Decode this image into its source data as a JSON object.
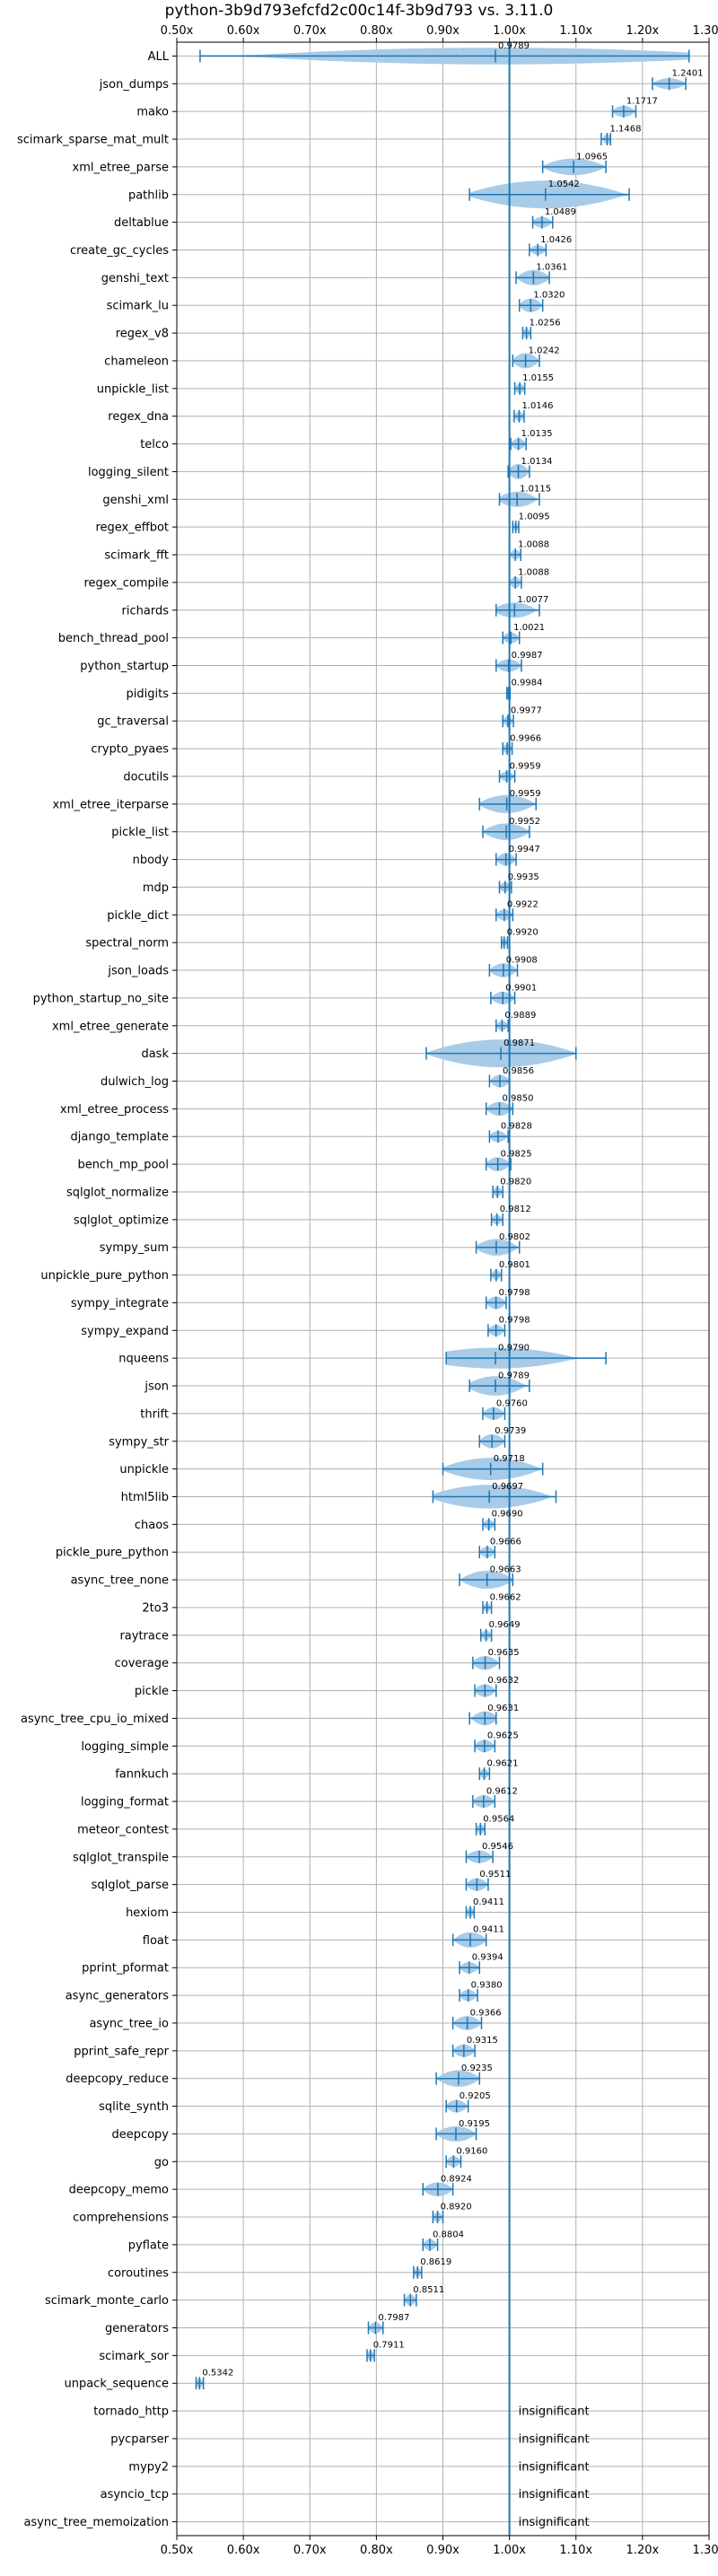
{
  "chart_data": {
    "type": "violin",
    "title": "python-3b9d793efcfd2c00c14f-3b9d793 vs. 3.11.0",
    "xlim": [
      0.5,
      1.3
    ],
    "xticks": [
      0.5,
      0.6,
      0.7,
      0.8,
      0.9,
      1.0,
      1.1,
      1.2,
      1.3
    ],
    "xtick_labels": [
      "0.50x",
      "0.60x",
      "0.70x",
      "0.80x",
      "0.90x",
      "1.00x",
      "1.10x",
      "1.20x",
      "1.30x"
    ],
    "xaxis_position": "top and bottom",
    "reference_line": 1.0,
    "grid": true,
    "colors": {
      "violin": "#a8cbe8",
      "line": "#1f77b4",
      "grid": "#b0b0b0",
      "reference": "#1f77b4"
    },
    "benchmarks": [
      {
        "name": "ALL",
        "value": 0.9789,
        "label": "0.9789",
        "min": 0.535,
        "max": 1.27,
        "q1": 0.92,
        "q3": 1.025,
        "width": 0.55
      },
      {
        "name": "json_dumps",
        "value": 1.2401,
        "label": "1.2401",
        "min": 1.215,
        "max": 1.265,
        "width": 0.35
      },
      {
        "name": "mako",
        "value": 1.1717,
        "label": "1.1717",
        "min": 1.155,
        "max": 1.19,
        "width": 0.35
      },
      {
        "name": "scimark_sparse_mat_mult",
        "value": 1.1468,
        "label": "1.1468",
        "min": 1.138,
        "max": 1.152,
        "width": 0.3
      },
      {
        "name": "xml_etree_parse",
        "value": 1.0965,
        "label": "1.0965",
        "min": 1.05,
        "max": 1.145,
        "width": 0.55
      },
      {
        "name": "pathlib",
        "value": 1.0542,
        "label": "1.0542",
        "min": 0.94,
        "max": 1.18,
        "width": 0.95
      },
      {
        "name": "deltablue",
        "value": 1.0489,
        "label": "1.0489",
        "min": 1.035,
        "max": 1.065,
        "width": 0.35
      },
      {
        "name": "create_gc_cycles",
        "value": 1.0426,
        "label": "1.0426",
        "min": 1.03,
        "max": 1.055,
        "width": 0.3
      },
      {
        "name": "genshi_text",
        "value": 1.0361,
        "label": "1.0361",
        "min": 1.01,
        "max": 1.06,
        "width": 0.5
      },
      {
        "name": "scimark_lu",
        "value": 1.032,
        "label": "1.0320",
        "min": 1.015,
        "max": 1.05,
        "width": 0.45
      },
      {
        "name": "regex_v8",
        "value": 1.0256,
        "label": "1.0256",
        "min": 1.02,
        "max": 1.032,
        "width": 0.3
      },
      {
        "name": "chameleon",
        "value": 1.0242,
        "label": "1.0242",
        "min": 1.005,
        "max": 1.045,
        "width": 0.5
      },
      {
        "name": "unpickle_list",
        "value": 1.0155,
        "label": "1.0155",
        "min": 1.008,
        "max": 1.023,
        "width": 0.3
      },
      {
        "name": "regex_dna",
        "value": 1.0146,
        "label": "1.0146",
        "min": 1.007,
        "max": 1.022,
        "width": 0.3
      },
      {
        "name": "telco",
        "value": 1.0135,
        "label": "1.0135",
        "min": 1.002,
        "max": 1.025,
        "width": 0.35
      },
      {
        "name": "logging_silent",
        "value": 1.0134,
        "label": "1.0134",
        "min": 0.998,
        "max": 1.03,
        "width": 0.5
      },
      {
        "name": "genshi_xml",
        "value": 1.0115,
        "label": "1.0115",
        "min": 0.985,
        "max": 1.045,
        "width": 0.5
      },
      {
        "name": "regex_effbot",
        "value": 1.0095,
        "label": "1.0095",
        "min": 1.005,
        "max": 1.014,
        "width": 0.25
      },
      {
        "name": "scimark_fft",
        "value": 1.0088,
        "label": "1.0088",
        "min": 1.0,
        "max": 1.017,
        "width": 0.3
      },
      {
        "name": "regex_compile",
        "value": 1.0088,
        "label": "1.0088",
        "min": 1.0,
        "max": 1.018,
        "width": 0.35
      },
      {
        "name": "richards",
        "value": 1.0077,
        "label": "1.0077",
        "min": 0.98,
        "max": 1.045,
        "width": 0.5
      },
      {
        "name": "bench_thread_pool",
        "value": 1.0021,
        "label": "1.0021",
        "min": 0.99,
        "max": 1.015,
        "width": 0.35
      },
      {
        "name": "python_startup",
        "value": 0.9987,
        "label": "0.9987",
        "min": 0.98,
        "max": 1.018,
        "width": 0.4
      },
      {
        "name": "pidigits",
        "value": 0.9984,
        "label": "0.9984",
        "min": 0.996,
        "max": 1.001,
        "width": 0.2
      },
      {
        "name": "gc_traversal",
        "value": 0.9977,
        "label": "0.9977",
        "min": 0.99,
        "max": 1.006,
        "width": 0.3
      },
      {
        "name": "crypto_pyaes",
        "value": 0.9966,
        "label": "0.9966",
        "min": 0.99,
        "max": 1.004,
        "width": 0.3
      },
      {
        "name": "docutils",
        "value": 0.9959,
        "label": "0.9959",
        "min": 0.985,
        "max": 1.008,
        "width": 0.3
      },
      {
        "name": "xml_etree_iterparse",
        "value": 0.9959,
        "label": "0.9959",
        "min": 0.955,
        "max": 1.04,
        "width": 0.6
      },
      {
        "name": "pickle_list",
        "value": 0.9952,
        "label": "0.9952",
        "min": 0.96,
        "max": 1.03,
        "width": 0.55
      },
      {
        "name": "nbody",
        "value": 0.9947,
        "label": "0.9947",
        "min": 0.98,
        "max": 1.01,
        "width": 0.4
      },
      {
        "name": "mdp",
        "value": 0.9935,
        "label": "0.9935",
        "min": 0.985,
        "max": 1.003,
        "width": 0.3
      },
      {
        "name": "pickle_dict",
        "value": 0.9922,
        "label": "0.9922",
        "min": 0.98,
        "max": 1.005,
        "width": 0.35
      },
      {
        "name": "spectral_norm",
        "value": 0.992,
        "label": "0.9920",
        "min": 0.988,
        "max": 0.997,
        "width": 0.25
      },
      {
        "name": "json_loads",
        "value": 0.9908,
        "label": "0.9908",
        "min": 0.97,
        "max": 1.012,
        "width": 0.45
      },
      {
        "name": "python_startup_no_site",
        "value": 0.9901,
        "label": "0.9901",
        "min": 0.972,
        "max": 1.008,
        "width": 0.4
      },
      {
        "name": "xml_etree_generate",
        "value": 0.9889,
        "label": "0.9889",
        "min": 0.98,
        "max": 0.998,
        "width": 0.3
      },
      {
        "name": "dask",
        "value": 0.9871,
        "label": "0.9871",
        "min": 0.875,
        "max": 1.1,
        "width": 0.95
      },
      {
        "name": "dulwich_log",
        "value": 0.9856,
        "label": "0.9856",
        "min": 0.97,
        "max": 1.0,
        "width": 0.4
      },
      {
        "name": "xml_etree_process",
        "value": 0.985,
        "label": "0.9850",
        "min": 0.965,
        "max": 1.005,
        "width": 0.45
      },
      {
        "name": "django_template",
        "value": 0.9828,
        "label": "0.9828",
        "min": 0.97,
        "max": 0.998,
        "width": 0.35
      },
      {
        "name": "bench_mp_pool",
        "value": 0.9825,
        "label": "0.9825",
        "min": 0.965,
        "max": 1.002,
        "width": 0.45
      },
      {
        "name": "sqlglot_normalize",
        "value": 0.982,
        "label": "0.9820",
        "min": 0.975,
        "max": 0.99,
        "width": 0.3
      },
      {
        "name": "sqlglot_optimize",
        "value": 0.9812,
        "label": "0.9812",
        "min": 0.973,
        "max": 0.99,
        "width": 0.3
      },
      {
        "name": "sympy_sum",
        "value": 0.9802,
        "label": "0.9802",
        "min": 0.95,
        "max": 1.015,
        "width": 0.55
      },
      {
        "name": "unpickle_pure_python",
        "value": 0.9801,
        "label": "0.9801",
        "min": 0.972,
        "max": 0.988,
        "width": 0.3
      },
      {
        "name": "sympy_integrate",
        "value": 0.9798,
        "label": "0.9798",
        "min": 0.965,
        "max": 0.995,
        "width": 0.4
      },
      {
        "name": "sympy_expand",
        "value": 0.9798,
        "label": "0.9798",
        "min": 0.968,
        "max": 0.993,
        "width": 0.35
      },
      {
        "name": "nqueens",
        "value": 0.979,
        "label": "0.9790",
        "min": 0.905,
        "max": 1.145,
        "width": 0.7
      },
      {
        "name": "json",
        "value": 0.9789,
        "label": "0.9789",
        "min": 0.94,
        "max": 1.03,
        "width": 0.65
      },
      {
        "name": "thrift",
        "value": 0.976,
        "label": "0.9760",
        "min": 0.96,
        "max": 0.993,
        "width": 0.4
      },
      {
        "name": "sympy_str",
        "value": 0.9739,
        "label": "0.9739",
        "min": 0.955,
        "max": 0.993,
        "width": 0.45
      },
      {
        "name": "unpickle",
        "value": 0.9718,
        "label": "0.9718",
        "min": 0.9,
        "max": 1.05,
        "width": 0.75
      },
      {
        "name": "html5lib",
        "value": 0.9697,
        "label": "0.9697",
        "min": 0.885,
        "max": 1.07,
        "width": 0.8
      },
      {
        "name": "chaos",
        "value": 0.969,
        "label": "0.9690",
        "min": 0.96,
        "max": 0.978,
        "width": 0.3
      },
      {
        "name": "pickle_pure_python",
        "value": 0.9666,
        "label": "0.9666",
        "min": 0.955,
        "max": 0.978,
        "width": 0.35
      },
      {
        "name": "async_tree_none",
        "value": 0.9663,
        "label": "0.9663",
        "min": 0.925,
        "max": 1.005,
        "width": 0.6
      },
      {
        "name": "2to3",
        "value": 0.9662,
        "label": "0.9662",
        "min": 0.96,
        "max": 0.973,
        "width": 0.25
      },
      {
        "name": "raytrace",
        "value": 0.9649,
        "label": "0.9649",
        "min": 0.957,
        "max": 0.973,
        "width": 0.3
      },
      {
        "name": "coverage",
        "value": 0.9635,
        "label": "0.9635",
        "min": 0.945,
        "max": 0.985,
        "width": 0.45
      },
      {
        "name": "pickle",
        "value": 0.9632,
        "label": "0.9632",
        "min": 0.948,
        "max": 0.98,
        "width": 0.4
      },
      {
        "name": "async_tree_cpu_io_mixed",
        "value": 0.9631,
        "label": "0.9631",
        "min": 0.94,
        "max": 0.98,
        "width": 0.45
      },
      {
        "name": "logging_simple",
        "value": 0.9625,
        "label": "0.9625",
        "min": 0.948,
        "max": 0.978,
        "width": 0.4
      },
      {
        "name": "fannkuch",
        "value": 0.9621,
        "label": "0.9621",
        "min": 0.955,
        "max": 0.97,
        "width": 0.3
      },
      {
        "name": "logging_format",
        "value": 0.9612,
        "label": "0.9612",
        "min": 0.945,
        "max": 0.978,
        "width": 0.4
      },
      {
        "name": "meteor_contest",
        "value": 0.9564,
        "label": "0.9564",
        "min": 0.95,
        "max": 0.963,
        "width": 0.3
      },
      {
        "name": "sqlglot_transpile",
        "value": 0.9546,
        "label": "0.9546",
        "min": 0.935,
        "max": 0.975,
        "width": 0.4
      },
      {
        "name": "sqlglot_parse",
        "value": 0.9511,
        "label": "0.9511",
        "min": 0.935,
        "max": 0.968,
        "width": 0.4
      },
      {
        "name": "hexiom",
        "value": 0.9411,
        "label": "0.9411",
        "min": 0.935,
        "max": 0.947,
        "width": 0.3
      },
      {
        "name": "float",
        "value": 0.9411,
        "label": "0.9411",
        "min": 0.915,
        "max": 0.965,
        "width": 0.5
      },
      {
        "name": "pprint_pformat",
        "value": 0.9394,
        "label": "0.9394",
        "min": 0.925,
        "max": 0.955,
        "width": 0.35
      },
      {
        "name": "async_generators",
        "value": 0.938,
        "label": "0.9380",
        "min": 0.925,
        "max": 0.952,
        "width": 0.35
      },
      {
        "name": "async_tree_io",
        "value": 0.9366,
        "label": "0.9366",
        "min": 0.915,
        "max": 0.958,
        "width": 0.45
      },
      {
        "name": "pprint_safe_repr",
        "value": 0.9315,
        "label": "0.9315",
        "min": 0.915,
        "max": 0.948,
        "width": 0.4
      },
      {
        "name": "deepcopy_reduce",
        "value": 0.9235,
        "label": "0.9235",
        "min": 0.89,
        "max": 0.955,
        "width": 0.55
      },
      {
        "name": "sqlite_synth",
        "value": 0.9205,
        "label": "0.9205",
        "min": 0.905,
        "max": 0.938,
        "width": 0.4
      },
      {
        "name": "deepcopy",
        "value": 0.9195,
        "label": "0.9195",
        "min": 0.89,
        "max": 0.95,
        "width": 0.5
      },
      {
        "name": "go",
        "value": 0.916,
        "label": "0.9160",
        "min": 0.905,
        "max": 0.927,
        "width": 0.35
      },
      {
        "name": "deepcopy_memo",
        "value": 0.8924,
        "label": "0.8924",
        "min": 0.87,
        "max": 0.915,
        "width": 0.45
      },
      {
        "name": "comprehensions",
        "value": 0.892,
        "label": "0.8920",
        "min": 0.885,
        "max": 0.9,
        "width": 0.3
      },
      {
        "name": "pyflate",
        "value": 0.8804,
        "label": "0.8804",
        "min": 0.87,
        "max": 0.892,
        "width": 0.35
      },
      {
        "name": "coroutines",
        "value": 0.8619,
        "label": "0.8619",
        "min": 0.856,
        "max": 0.868,
        "width": 0.3
      },
      {
        "name": "scimark_monte_carlo",
        "value": 0.8511,
        "label": "0.8511",
        "min": 0.842,
        "max": 0.86,
        "width": 0.35
      },
      {
        "name": "generators",
        "value": 0.7987,
        "label": "0.7987",
        "min": 0.788,
        "max": 0.81,
        "width": 0.35
      },
      {
        "name": "scimark_sor",
        "value": 0.7911,
        "label": "0.7911",
        "min": 0.786,
        "max": 0.797,
        "width": 0.3
      },
      {
        "name": "unpack_sequence",
        "value": 0.5342,
        "label": "0.5342",
        "min": 0.529,
        "max": 0.54,
        "width": 0.3
      },
      {
        "name": "tornado_http",
        "insignificant": true,
        "label": "insignificant"
      },
      {
        "name": "pycparser",
        "insignificant": true,
        "label": "insignificant"
      },
      {
        "name": "mypy2",
        "insignificant": true,
        "label": "insignificant"
      },
      {
        "name": "asyncio_tcp",
        "insignificant": true,
        "label": "insignificant"
      },
      {
        "name": "async_tree_memoization",
        "insignificant": true,
        "label": "insignificant"
      }
    ]
  }
}
